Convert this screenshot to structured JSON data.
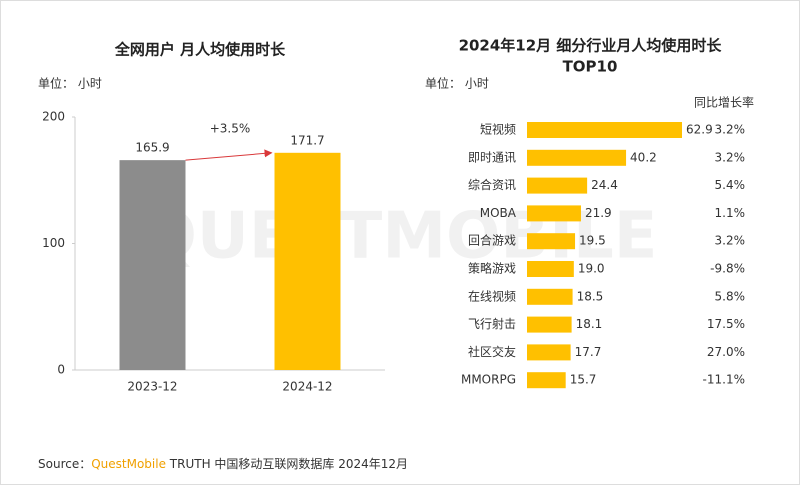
{
  "charts": [
    {
      "type": "bar",
      "title": "全网用户 月人均使用时长",
      "unit": "单位： 小时",
      "categories": [
        "2023-12",
        "2024-12"
      ],
      "values": [
        165.9,
        171.7
      ],
      "colors": [
        "#8c8c8c",
        "#ffc000"
      ],
      "ylim": [
        0,
        200
      ],
      "yticks": [
        0,
        100,
        200
      ],
      "annotation": "+3.5%",
      "annotation_color": "#d9383a"
    },
    {
      "type": "hbar",
      "title": "2024年12月 细分行业月人均使用时长",
      "subtitle": "TOP10",
      "unit": "单位： 小时",
      "categories": [
        "短视频",
        "即时通讯",
        "综合资讯",
        "MOBA",
        "回合游戏",
        "策略游戏",
        "在线视频",
        "飞行射击",
        "社区交友",
        "MMORPG"
      ],
      "values": [
        62.9,
        40.2,
        24.4,
        21.9,
        19.5,
        19.0,
        18.5,
        18.1,
        17.7,
        15.7
      ],
      "value_labels": [
        "62.9",
        "40.2",
        "24.4",
        "21.9",
        "19.5",
        "19.0",
        "18.5",
        "18.1",
        "17.7",
        "15.7"
      ],
      "color": "#ffc000",
      "growth": {
        "name": "同比增长率",
        "values": [
          3.2,
          3.2,
          5.4,
          1.1,
          3.2,
          -9.8,
          5.8,
          17.5,
          27.0,
          -11.1
        ],
        "value_labels": [
          "3.2%",
          "3.2%",
          "5.4%",
          "1.1%",
          "3.2%",
          "-9.8%",
          "5.8%",
          "17.5%",
          "27.0%",
          "-11.1%"
        ],
        "positive_color": "#d9383a",
        "negative_color": "#333333"
      }
    }
  ],
  "watermark": "QUESTMOBILE",
  "source": {
    "label": "Source：",
    "brand": "QuestMobile",
    "text": " TRUTH 中国移动互联网数据库 2024年12月",
    "brand_color": "#f0a000"
  }
}
